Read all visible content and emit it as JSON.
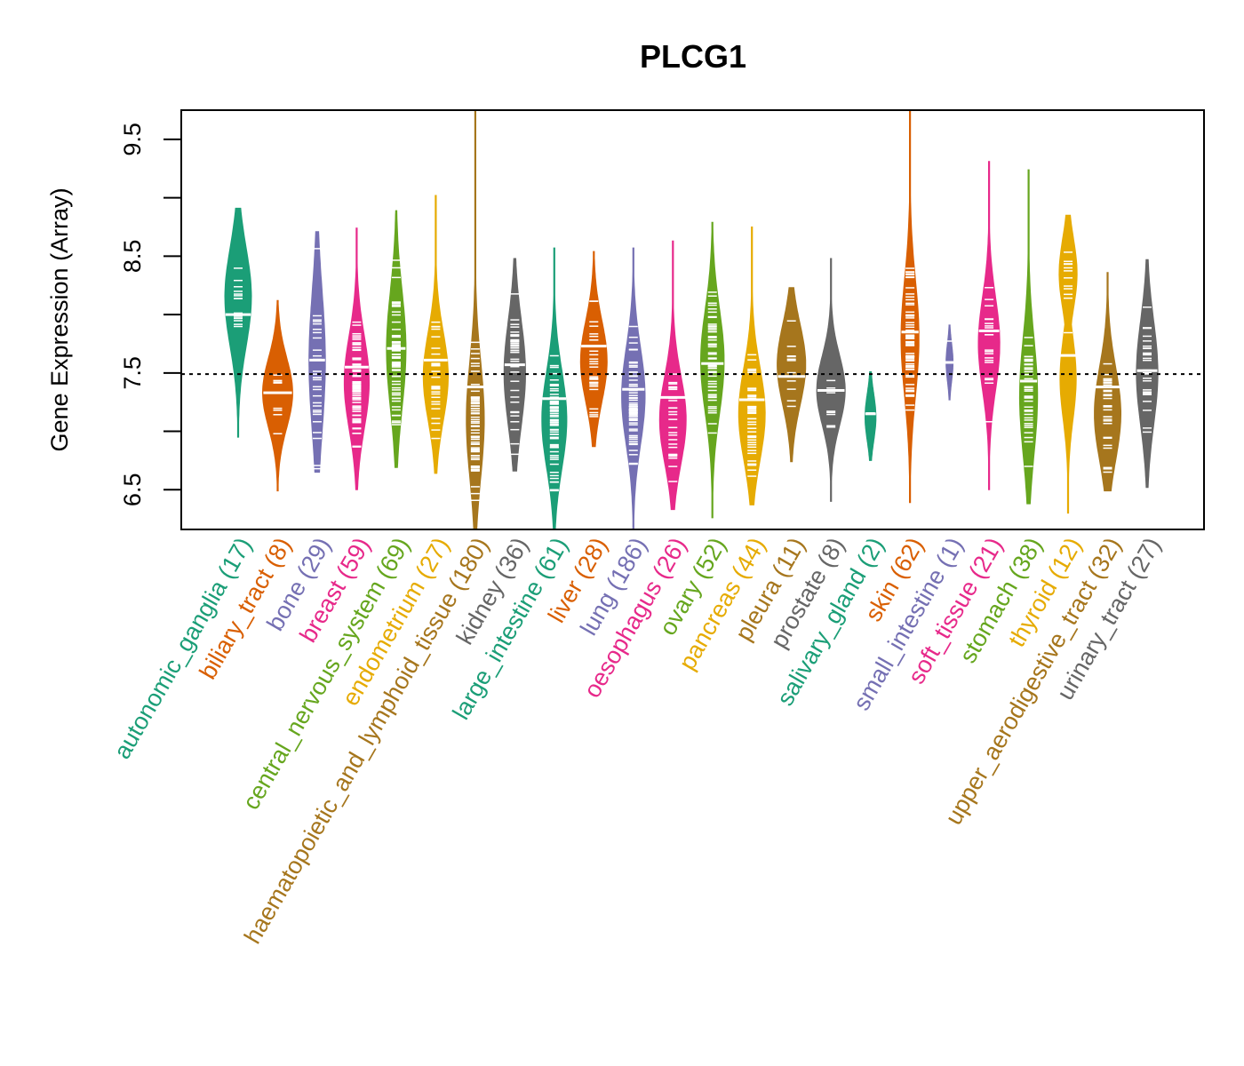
{
  "chart_data": {
    "type": "beanplot",
    "title": "PLCG1",
    "xlabel": "",
    "ylabel": "Gene Expression (Array)",
    "ylim": [
      6.16,
      9.75
    ],
    "yticks": [
      6.5,
      7.0,
      7.5,
      8.0,
      8.5,
      9.0,
      9.5
    ],
    "ytick_labels": [
      "6.5",
      "",
      "7.5",
      "",
      "8.5",
      "",
      "9.5"
    ],
    "reference_line": 7.49,
    "grid": false,
    "legend": "none",
    "palette": [
      "#1B9E77",
      "#D95F02",
      "#7570B3",
      "#E7298A",
      "#66A61E",
      "#E6AB02",
      "#A6761D",
      "#666666"
    ],
    "groups": [
      {
        "name": "autonomic_ganglia",
        "n": 17,
        "median": 8.0,
        "min": 6.95,
        "max": 8.91,
        "peak": 8.15,
        "width": 0.68,
        "spread": 0.42
      },
      {
        "name": "biliary_tract",
        "n": 8,
        "median": 7.33,
        "min": 6.49,
        "max": 8.12,
        "peak": 7.33,
        "width": 0.77,
        "spread": 0.3
      },
      {
        "name": "bone",
        "n": 29,
        "median": 7.61,
        "min": 6.65,
        "max": 8.71,
        "peak": 7.6,
        "width": 0.42,
        "spread": 0.6
      },
      {
        "name": "breast",
        "n": 59,
        "median": 7.55,
        "min": 6.5,
        "max": 8.74,
        "peak": 7.42,
        "width": 0.64,
        "spread": 0.4
      },
      {
        "name": "central_nervous_system",
        "n": 69,
        "median": 7.71,
        "min": 6.69,
        "max": 8.89,
        "peak": 7.7,
        "width": 0.5,
        "spread": 0.5
      },
      {
        "name": "endometrium",
        "n": 27,
        "median": 7.61,
        "min": 6.64,
        "max": 9.02,
        "peak": 7.47,
        "width": 0.64,
        "spread": 0.38
      },
      {
        "name": "haematopoietic_and_lymphoid_tissue",
        "n": 180,
        "median": 7.38,
        "min": 6.16,
        "max": 9.75,
        "peak": 7.1,
        "width": 0.46,
        "spread": 0.5
      },
      {
        "name": "kidney",
        "n": 36,
        "median": 7.57,
        "min": 6.66,
        "max": 8.48,
        "peak": 7.5,
        "width": 0.55,
        "spread": 0.45
      },
      {
        "name": "large_intestine",
        "n": 61,
        "median": 7.28,
        "min": 6.16,
        "max": 8.57,
        "peak": 7.1,
        "width": 0.64,
        "spread": 0.42
      },
      {
        "name": "liver",
        "n": 28,
        "median": 7.73,
        "min": 6.87,
        "max": 8.54,
        "peak": 7.6,
        "width": 0.68,
        "spread": 0.35
      },
      {
        "name": "lung",
        "n": 186,
        "median": 7.36,
        "min": 6.16,
        "max": 8.57,
        "peak": 7.3,
        "width": 0.6,
        "spread": 0.42
      },
      {
        "name": "oesophagus",
        "n": 26,
        "median": 7.29,
        "min": 6.33,
        "max": 8.63,
        "peak": 7.1,
        "width": 0.68,
        "spread": 0.38
      },
      {
        "name": "ovary",
        "n": 52,
        "median": 7.58,
        "min": 6.26,
        "max": 8.79,
        "peak": 7.6,
        "width": 0.6,
        "spread": 0.45
      },
      {
        "name": "pancreas",
        "n": 44,
        "median": 7.27,
        "min": 6.37,
        "max": 8.75,
        "peak": 7.15,
        "width": 0.68,
        "spread": 0.4
      },
      {
        "name": "pleura",
        "n": 11,
        "median": 7.47,
        "min": 6.74,
        "max": 8.23,
        "peak": 7.57,
        "width": 0.73,
        "spread": 0.35
      },
      {
        "name": "prostate",
        "n": 8,
        "median": 7.35,
        "min": 6.4,
        "max": 8.48,
        "peak": 7.35,
        "width": 0.73,
        "spread": 0.3
      },
      {
        "name": "salivary_gland",
        "n": 2,
        "median": 7.15,
        "min": 6.75,
        "max": 7.51,
        "peak": 7.12,
        "width": 0.28,
        "spread": 0.2
      },
      {
        "name": "skin",
        "n": 62,
        "median": 7.85,
        "min": 6.39,
        "max": 9.75,
        "peak": 7.8,
        "width": 0.46,
        "spread": 0.5
      },
      {
        "name": "small_intestine",
        "n": 1,
        "median": 7.59,
        "min": 7.27,
        "max": 7.91,
        "peak": 7.59,
        "width": 0.18,
        "spread": 0.16
      },
      {
        "name": "soft_tissue",
        "n": 21,
        "median": 7.86,
        "min": 6.5,
        "max": 9.31,
        "peak": 7.75,
        "width": 0.55,
        "spread": 0.4
      },
      {
        "name": "stomach",
        "n": 38,
        "median": 7.43,
        "min": 6.38,
        "max": 9.24,
        "peak": 7.3,
        "width": 0.46,
        "spread": 0.5
      },
      {
        "name": "thyroid",
        "n": 12,
        "median": 7.65,
        "min": 6.3,
        "max": 8.85,
        "peak": 8.35,
        "width": 0.46,
        "spread": 0.3
      },
      {
        "name": "upper_aerodigestive_tract",
        "n": 32,
        "median": 7.38,
        "min": 6.49,
        "max": 8.36,
        "peak": 7.15,
        "width": 0.68,
        "spread": 0.4
      },
      {
        "name": "urinary_tract",
        "n": 27,
        "median": 7.52,
        "min": 6.52,
        "max": 8.47,
        "peak": 7.5,
        "width": 0.55,
        "spread": 0.45
      }
    ]
  }
}
